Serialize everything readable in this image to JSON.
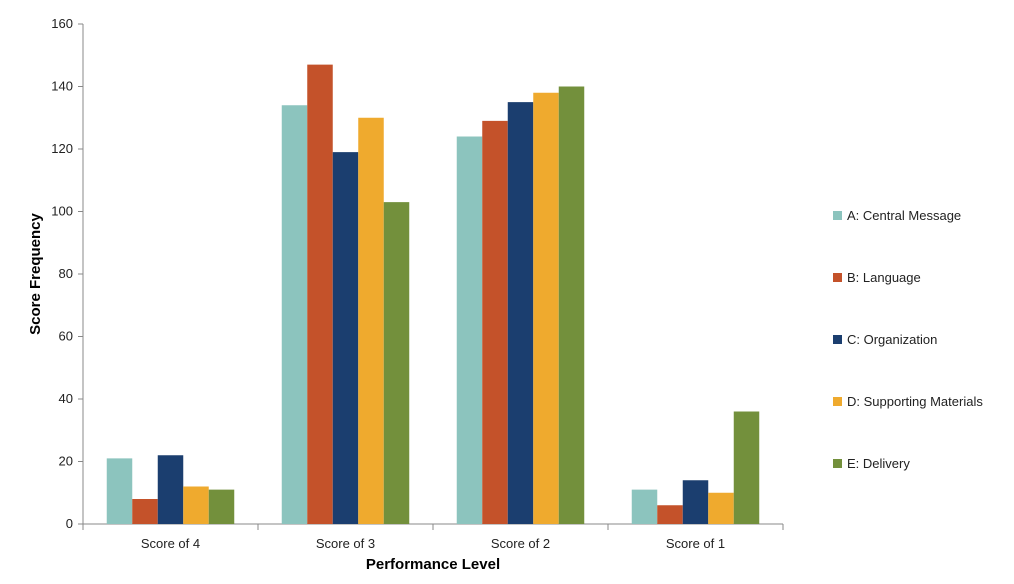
{
  "chart_data": {
    "type": "bar",
    "title": "",
    "xlabel": "Performance Level",
    "ylabel": "Score Frequency",
    "ylim": [
      0,
      160
    ],
    "yticks": [
      0,
      20,
      40,
      60,
      80,
      100,
      120,
      140,
      160
    ],
    "categories": [
      "Score of 4",
      "Score of 3",
      "Score of 2",
      "Score of 1"
    ],
    "series": [
      {
        "name": "A: Central Message",
        "color": "#8CC4BE",
        "values": [
          21,
          134,
          124,
          11
        ]
      },
      {
        "name": "B: Language",
        "color": "#C4522A",
        "values": [
          8,
          147,
          129,
          6
        ]
      },
      {
        "name": "C: Organization",
        "color": "#1B3E6F",
        "values": [
          22,
          119,
          135,
          14
        ]
      },
      {
        "name": "D: Supporting Materials",
        "color": "#EFAA2E",
        "values": [
          12,
          130,
          138,
          10
        ]
      },
      {
        "name": "E: Delivery",
        "color": "#73903C",
        "values": [
          11,
          103,
          140,
          36
        ]
      }
    ],
    "grid": false,
    "legend_position": "right"
  }
}
